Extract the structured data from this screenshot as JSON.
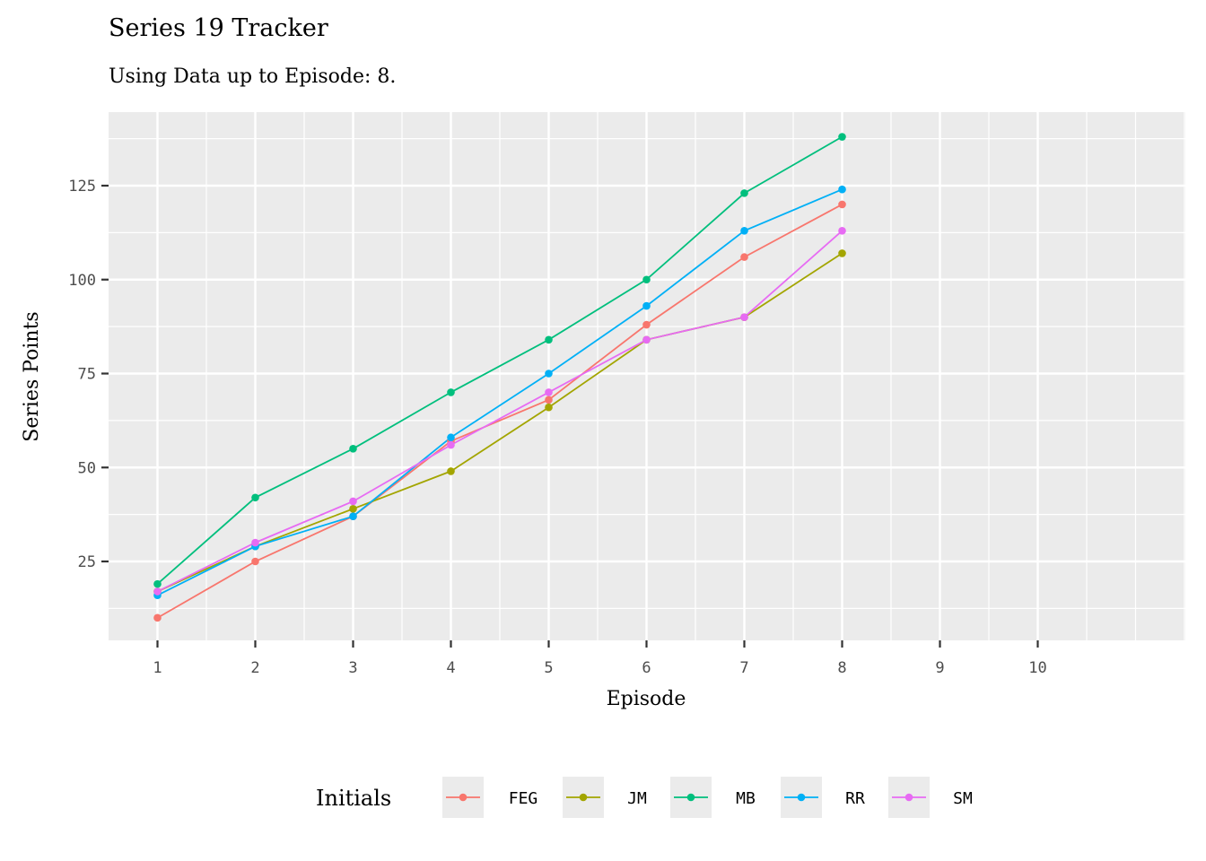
{
  "chart_data": {
    "type": "line",
    "title": "Series 19 Tracker",
    "subtitle": "Using Data up to Episode: 8.",
    "xlabel": "Episode",
    "ylabel": "Series Points",
    "x_ticks": [
      1,
      2,
      3,
      4,
      5,
      6,
      7,
      8,
      9,
      10
    ],
    "y_ticks": [
      25,
      50,
      75,
      100,
      125
    ],
    "xlim": [
      0.5,
      11.5
    ],
    "ylim": [
      3,
      144
    ],
    "grid": true,
    "legend_title": "Initials",
    "legend_position": "bottom",
    "series": [
      {
        "name": "FEG",
        "color": "#F8766D",
        "x": [
          1,
          2,
          3,
          4,
          5,
          6,
          7,
          8
        ],
        "values": [
          10,
          25,
          37,
          57,
          68,
          88,
          106,
          120
        ]
      },
      {
        "name": "JM",
        "color": "#A3A500",
        "x": [
          1,
          2,
          3,
          4,
          5,
          6,
          7,
          8
        ],
        "values": [
          17,
          29,
          39,
          49,
          66,
          84,
          90,
          107
        ]
      },
      {
        "name": "MB",
        "color": "#00BF7D",
        "x": [
          1,
          2,
          3,
          4,
          5,
          6,
          7,
          8
        ],
        "values": [
          19,
          42,
          55,
          70,
          84,
          100,
          123,
          138
        ]
      },
      {
        "name": "RR",
        "color": "#00B0F6",
        "x": [
          1,
          2,
          3,
          4,
          5,
          6,
          7,
          8
        ],
        "values": [
          16,
          29,
          37,
          58,
          75,
          93,
          113,
          124
        ]
      },
      {
        "name": "SM",
        "color": "#E76BF3",
        "x": [
          1,
          2,
          3,
          4,
          5,
          6,
          7,
          8
        ],
        "values": [
          17,
          30,
          41,
          56,
          70,
          84,
          90,
          113
        ]
      }
    ]
  }
}
